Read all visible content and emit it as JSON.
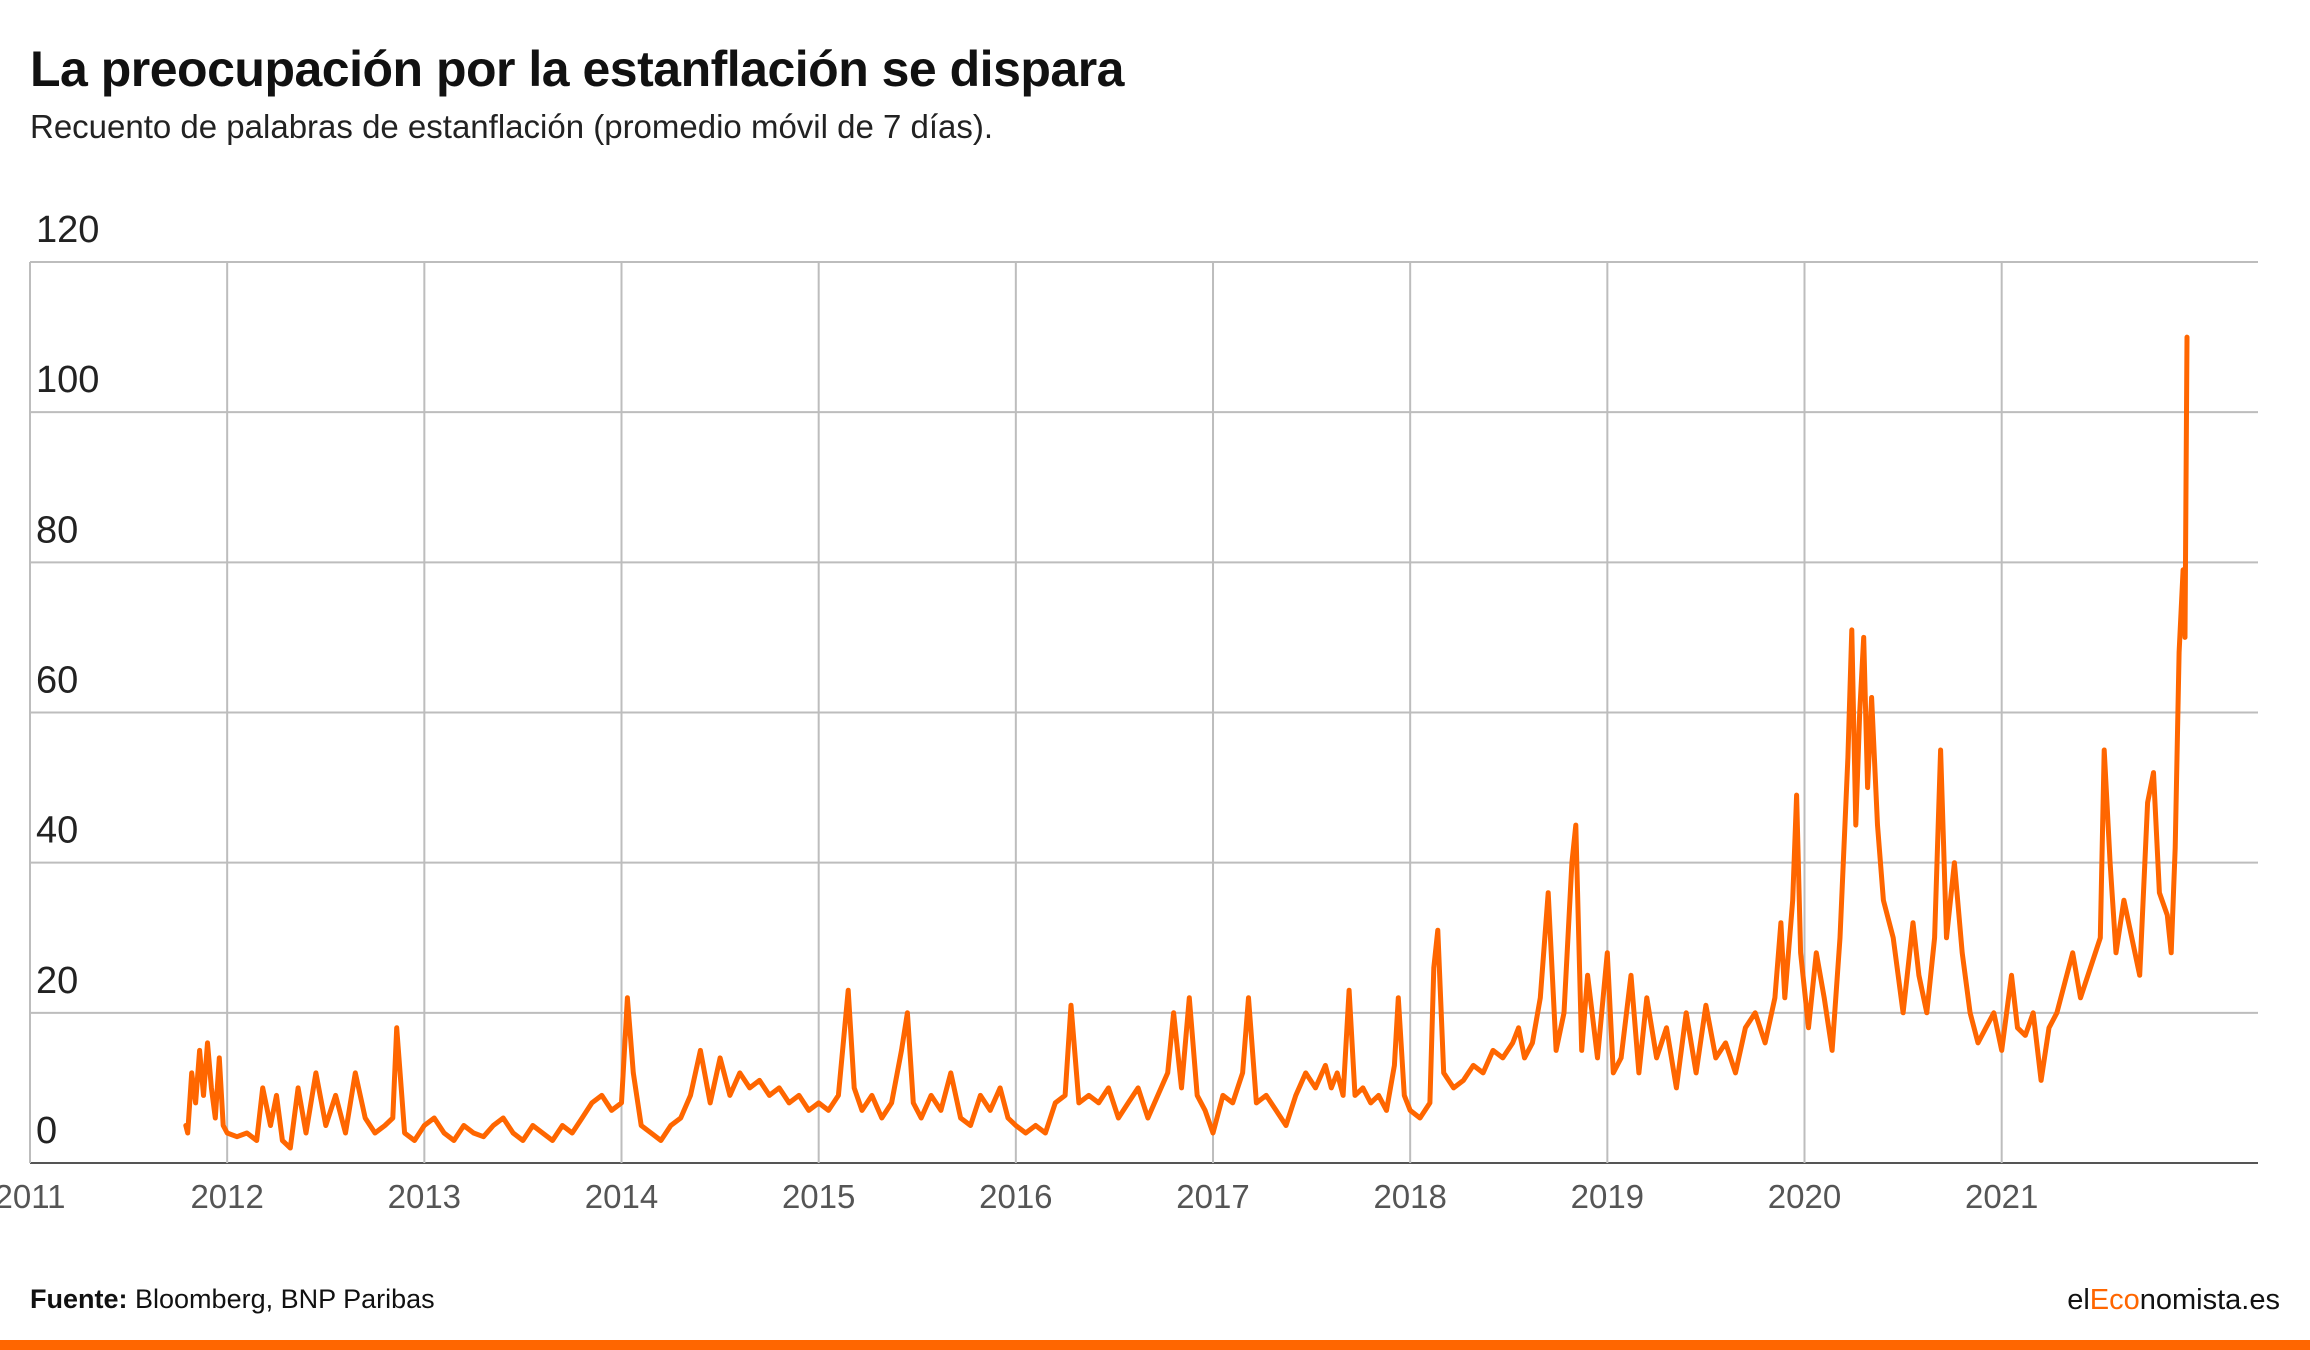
{
  "header": {
    "title": "La preocupación por la estanflación se dispara",
    "subtitle": "Recuento de palabras de estanflación (promedio móvil de 7 días)."
  },
  "footer": {
    "source_label": "Fuente:",
    "source_text": "Bloomberg, BNP Paribas",
    "brand_prefix": "el",
    "brand_accent": "Eco",
    "brand_suffix": "nomista.es"
  },
  "colors": {
    "line": "#ff6600",
    "grid": "#bdbdbd",
    "axis": "#555555",
    "accent": "#ff6600"
  },
  "chart_data": {
    "type": "line",
    "title": "La preocupación por la estanflación se dispara",
    "subtitle": "Recuento de palabras de estanflación (promedio móvil de 7 días).",
    "xlabel": "",
    "ylabel": "",
    "xlim": [
      2011,
      2022.3
    ],
    "ylim": [
      0,
      120
    ],
    "yticks": [
      0,
      20,
      40,
      60,
      80,
      100,
      120
    ],
    "xticks": [
      "2011",
      "2012",
      "2013",
      "2014",
      "2015",
      "2016",
      "2017",
      "2018",
      "2019",
      "2020",
      "2021"
    ],
    "grid": true,
    "legend": "none",
    "series": [
      {
        "color": "#ff6600",
        "points": [
          [
            2011.79,
            5
          ],
          [
            2011.8,
            4
          ],
          [
            2011.82,
            12
          ],
          [
            2011.84,
            8
          ],
          [
            2011.86,
            15
          ],
          [
            2011.88,
            9
          ],
          [
            2011.9,
            16
          ],
          [
            2011.92,
            10
          ],
          [
            2011.94,
            6
          ],
          [
            2011.96,
            14
          ],
          [
            2011.98,
            5
          ],
          [
            2012.0,
            4
          ],
          [
            2012.05,
            3.5
          ],
          [
            2012.1,
            4
          ],
          [
            2012.15,
            3
          ],
          [
            2012.18,
            10
          ],
          [
            2012.22,
            5
          ],
          [
            2012.25,
            9
          ],
          [
            2012.28,
            3
          ],
          [
            2012.32,
            2
          ],
          [
            2012.36,
            10
          ],
          [
            2012.4,
            4
          ],
          [
            2012.45,
            12
          ],
          [
            2012.5,
            5
          ],
          [
            2012.55,
            9
          ],
          [
            2012.6,
            4
          ],
          [
            2012.65,
            12
          ],
          [
            2012.7,
            6
          ],
          [
            2012.75,
            4
          ],
          [
            2012.8,
            5
          ],
          [
            2012.84,
            6
          ],
          [
            2012.86,
            18
          ],
          [
            2012.9,
            4
          ],
          [
            2012.95,
            3
          ],
          [
            2013.0,
            5
          ],
          [
            2013.05,
            6
          ],
          [
            2013.1,
            4
          ],
          [
            2013.15,
            3
          ],
          [
            2013.2,
            5
          ],
          [
            2013.25,
            4
          ],
          [
            2013.3,
            3.5
          ],
          [
            2013.35,
            5
          ],
          [
            2013.4,
            6
          ],
          [
            2013.45,
            4
          ],
          [
            2013.5,
            3
          ],
          [
            2013.55,
            5
          ],
          [
            2013.6,
            4
          ],
          [
            2013.65,
            3
          ],
          [
            2013.7,
            5
          ],
          [
            2013.75,
            4
          ],
          [
            2013.8,
            6
          ],
          [
            2013.85,
            8
          ],
          [
            2013.9,
            9
          ],
          [
            2013.95,
            7
          ],
          [
            2014.0,
            8
          ],
          [
            2014.03,
            22
          ],
          [
            2014.06,
            12
          ],
          [
            2014.1,
            5
          ],
          [
            2014.15,
            4
          ],
          [
            2014.2,
            3
          ],
          [
            2014.25,
            5
          ],
          [
            2014.3,
            6
          ],
          [
            2014.35,
            9
          ],
          [
            2014.4,
            15
          ],
          [
            2014.45,
            8
          ],
          [
            2014.5,
            14
          ],
          [
            2014.55,
            9
          ],
          [
            2014.6,
            12
          ],
          [
            2014.65,
            10
          ],
          [
            2014.7,
            11
          ],
          [
            2014.75,
            9
          ],
          [
            2014.8,
            10
          ],
          [
            2014.85,
            8
          ],
          [
            2014.9,
            9
          ],
          [
            2014.95,
            7
          ],
          [
            2015.0,
            8
          ],
          [
            2015.05,
            7
          ],
          [
            2015.1,
            9
          ],
          [
            2015.15,
            23
          ],
          [
            2015.18,
            10
          ],
          [
            2015.22,
            7
          ],
          [
            2015.27,
            9
          ],
          [
            2015.32,
            6
          ],
          [
            2015.37,
            8
          ],
          [
            2015.42,
            15
          ],
          [
            2015.45,
            20
          ],
          [
            2015.48,
            8
          ],
          [
            2015.52,
            6
          ],
          [
            2015.57,
            9
          ],
          [
            2015.62,
            7
          ],
          [
            2015.67,
            12
          ],
          [
            2015.72,
            6
          ],
          [
            2015.77,
            5
          ],
          [
            2015.82,
            9
          ],
          [
            2015.87,
            7
          ],
          [
            2015.92,
            10
          ],
          [
            2015.96,
            6
          ],
          [
            2016.0,
            5
          ],
          [
            2016.05,
            4
          ],
          [
            2016.1,
            5
          ],
          [
            2016.15,
            4
          ],
          [
            2016.2,
            8
          ],
          [
            2016.25,
            9
          ],
          [
            2016.28,
            21
          ],
          [
            2016.32,
            8
          ],
          [
            2016.37,
            9
          ],
          [
            2016.42,
            8
          ],
          [
            2016.47,
            10
          ],
          [
            2016.52,
            6
          ],
          [
            2016.57,
            8
          ],
          [
            2016.62,
            10
          ],
          [
            2016.67,
            6
          ],
          [
            2016.72,
            9
          ],
          [
            2016.77,
            12
          ],
          [
            2016.8,
            20
          ],
          [
            2016.84,
            10
          ],
          [
            2016.88,
            22
          ],
          [
            2016.92,
            9
          ],
          [
            2016.96,
            7
          ],
          [
            2017.0,
            4
          ],
          [
            2017.05,
            9
          ],
          [
            2017.1,
            8
          ],
          [
            2017.15,
            12
          ],
          [
            2017.18,
            22
          ],
          [
            2017.22,
            8
          ],
          [
            2017.27,
            9
          ],
          [
            2017.32,
            7
          ],
          [
            2017.37,
            5
          ],
          [
            2017.42,
            9
          ],
          [
            2017.47,
            12
          ],
          [
            2017.52,
            10
          ],
          [
            2017.57,
            13
          ],
          [
            2017.6,
            10
          ],
          [
            2017.63,
            12
          ],
          [
            2017.66,
            9
          ],
          [
            2017.69,
            23
          ],
          [
            2017.72,
            9
          ],
          [
            2017.76,
            10
          ],
          [
            2017.8,
            8
          ],
          [
            2017.84,
            9
          ],
          [
            2017.88,
            7
          ],
          [
            2017.92,
            13
          ],
          [
            2017.94,
            22
          ],
          [
            2017.97,
            9
          ],
          [
            2018.0,
            7
          ],
          [
            2018.05,
            6
          ],
          [
            2018.1,
            8
          ],
          [
            2018.12,
            26
          ],
          [
            2018.14,
            31
          ],
          [
            2018.17,
            12
          ],
          [
            2018.22,
            10
          ],
          [
            2018.27,
            11
          ],
          [
            2018.32,
            13
          ],
          [
            2018.37,
            12
          ],
          [
            2018.42,
            15
          ],
          [
            2018.47,
            14
          ],
          [
            2018.52,
            16
          ],
          [
            2018.55,
            18
          ],
          [
            2018.58,
            14
          ],
          [
            2018.62,
            16
          ],
          [
            2018.66,
            22
          ],
          [
            2018.7,
            36
          ],
          [
            2018.74,
            15
          ],
          [
            2018.78,
            20
          ],
          [
            2018.82,
            40
          ],
          [
            2018.84,
            45
          ],
          [
            2018.87,
            15
          ],
          [
            2018.9,
            25
          ],
          [
            2018.95,
            14
          ],
          [
            2019.0,
            28
          ],
          [
            2019.03,
            12
          ],
          [
            2019.07,
            14
          ],
          [
            2019.12,
            25
          ],
          [
            2019.16,
            12
          ],
          [
            2019.2,
            22
          ],
          [
            2019.25,
            14
          ],
          [
            2019.3,
            18
          ],
          [
            2019.35,
            10
          ],
          [
            2019.4,
            20
          ],
          [
            2019.45,
            12
          ],
          [
            2019.5,
            21
          ],
          [
            2019.55,
            14
          ],
          [
            2019.6,
            16
          ],
          [
            2019.65,
            12
          ],
          [
            2019.7,
            18
          ],
          [
            2019.75,
            20
          ],
          [
            2019.8,
            16
          ],
          [
            2019.85,
            22
          ],
          [
            2019.88,
            32
          ],
          [
            2019.9,
            22
          ],
          [
            2019.94,
            35
          ],
          [
            2019.96,
            49
          ],
          [
            2019.98,
            28
          ],
          [
            2020.02,
            18
          ],
          [
            2020.06,
            28
          ],
          [
            2020.1,
            22
          ],
          [
            2020.14,
            15
          ],
          [
            2020.18,
            30
          ],
          [
            2020.22,
            54
          ],
          [
            2020.24,
            71
          ],
          [
            2020.26,
            45
          ],
          [
            2020.28,
            60
          ],
          [
            2020.3,
            70
          ],
          [
            2020.32,
            50
          ],
          [
            2020.34,
            62
          ],
          [
            2020.37,
            45
          ],
          [
            2020.4,
            35
          ],
          [
            2020.45,
            30
          ],
          [
            2020.5,
            20
          ],
          [
            2020.55,
            32
          ],
          [
            2020.58,
            25
          ],
          [
            2020.62,
            20
          ],
          [
            2020.66,
            30
          ],
          [
            2020.69,
            55
          ],
          [
            2020.72,
            30
          ],
          [
            2020.76,
            40
          ],
          [
            2020.8,
            28
          ],
          [
            2020.84,
            20
          ],
          [
            2020.88,
            16
          ],
          [
            2020.92,
            18
          ],
          [
            2020.96,
            20
          ],
          [
            2021.0,
            15
          ],
          [
            2021.05,
            25
          ],
          [
            2021.08,
            18
          ],
          [
            2021.12,
            17
          ],
          [
            2021.16,
            20
          ],
          [
            2021.2,
            11
          ],
          [
            2021.24,
            18
          ],
          [
            2021.28,
            20
          ],
          [
            2021.32,
            24
          ],
          [
            2021.36,
            28
          ],
          [
            2021.4,
            22
          ],
          [
            2021.45,
            26
          ],
          [
            2021.5,
            30
          ],
          [
            2021.52,
            55
          ],
          [
            2021.55,
            40
          ],
          [
            2021.58,
            28
          ],
          [
            2021.62,
            35
          ],
          [
            2021.66,
            30
          ],
          [
            2021.7,
            25
          ],
          [
            2021.74,
            48
          ],
          [
            2021.77,
            52
          ],
          [
            2021.8,
            36
          ],
          [
            2021.84,
            33
          ],
          [
            2021.86,
            28
          ],
          [
            2021.88,
            42
          ],
          [
            2021.9,
            68
          ],
          [
            2021.92,
            79
          ],
          [
            2021.93,
            70
          ],
          [
            2021.94,
            110
          ]
        ]
      }
    ]
  }
}
